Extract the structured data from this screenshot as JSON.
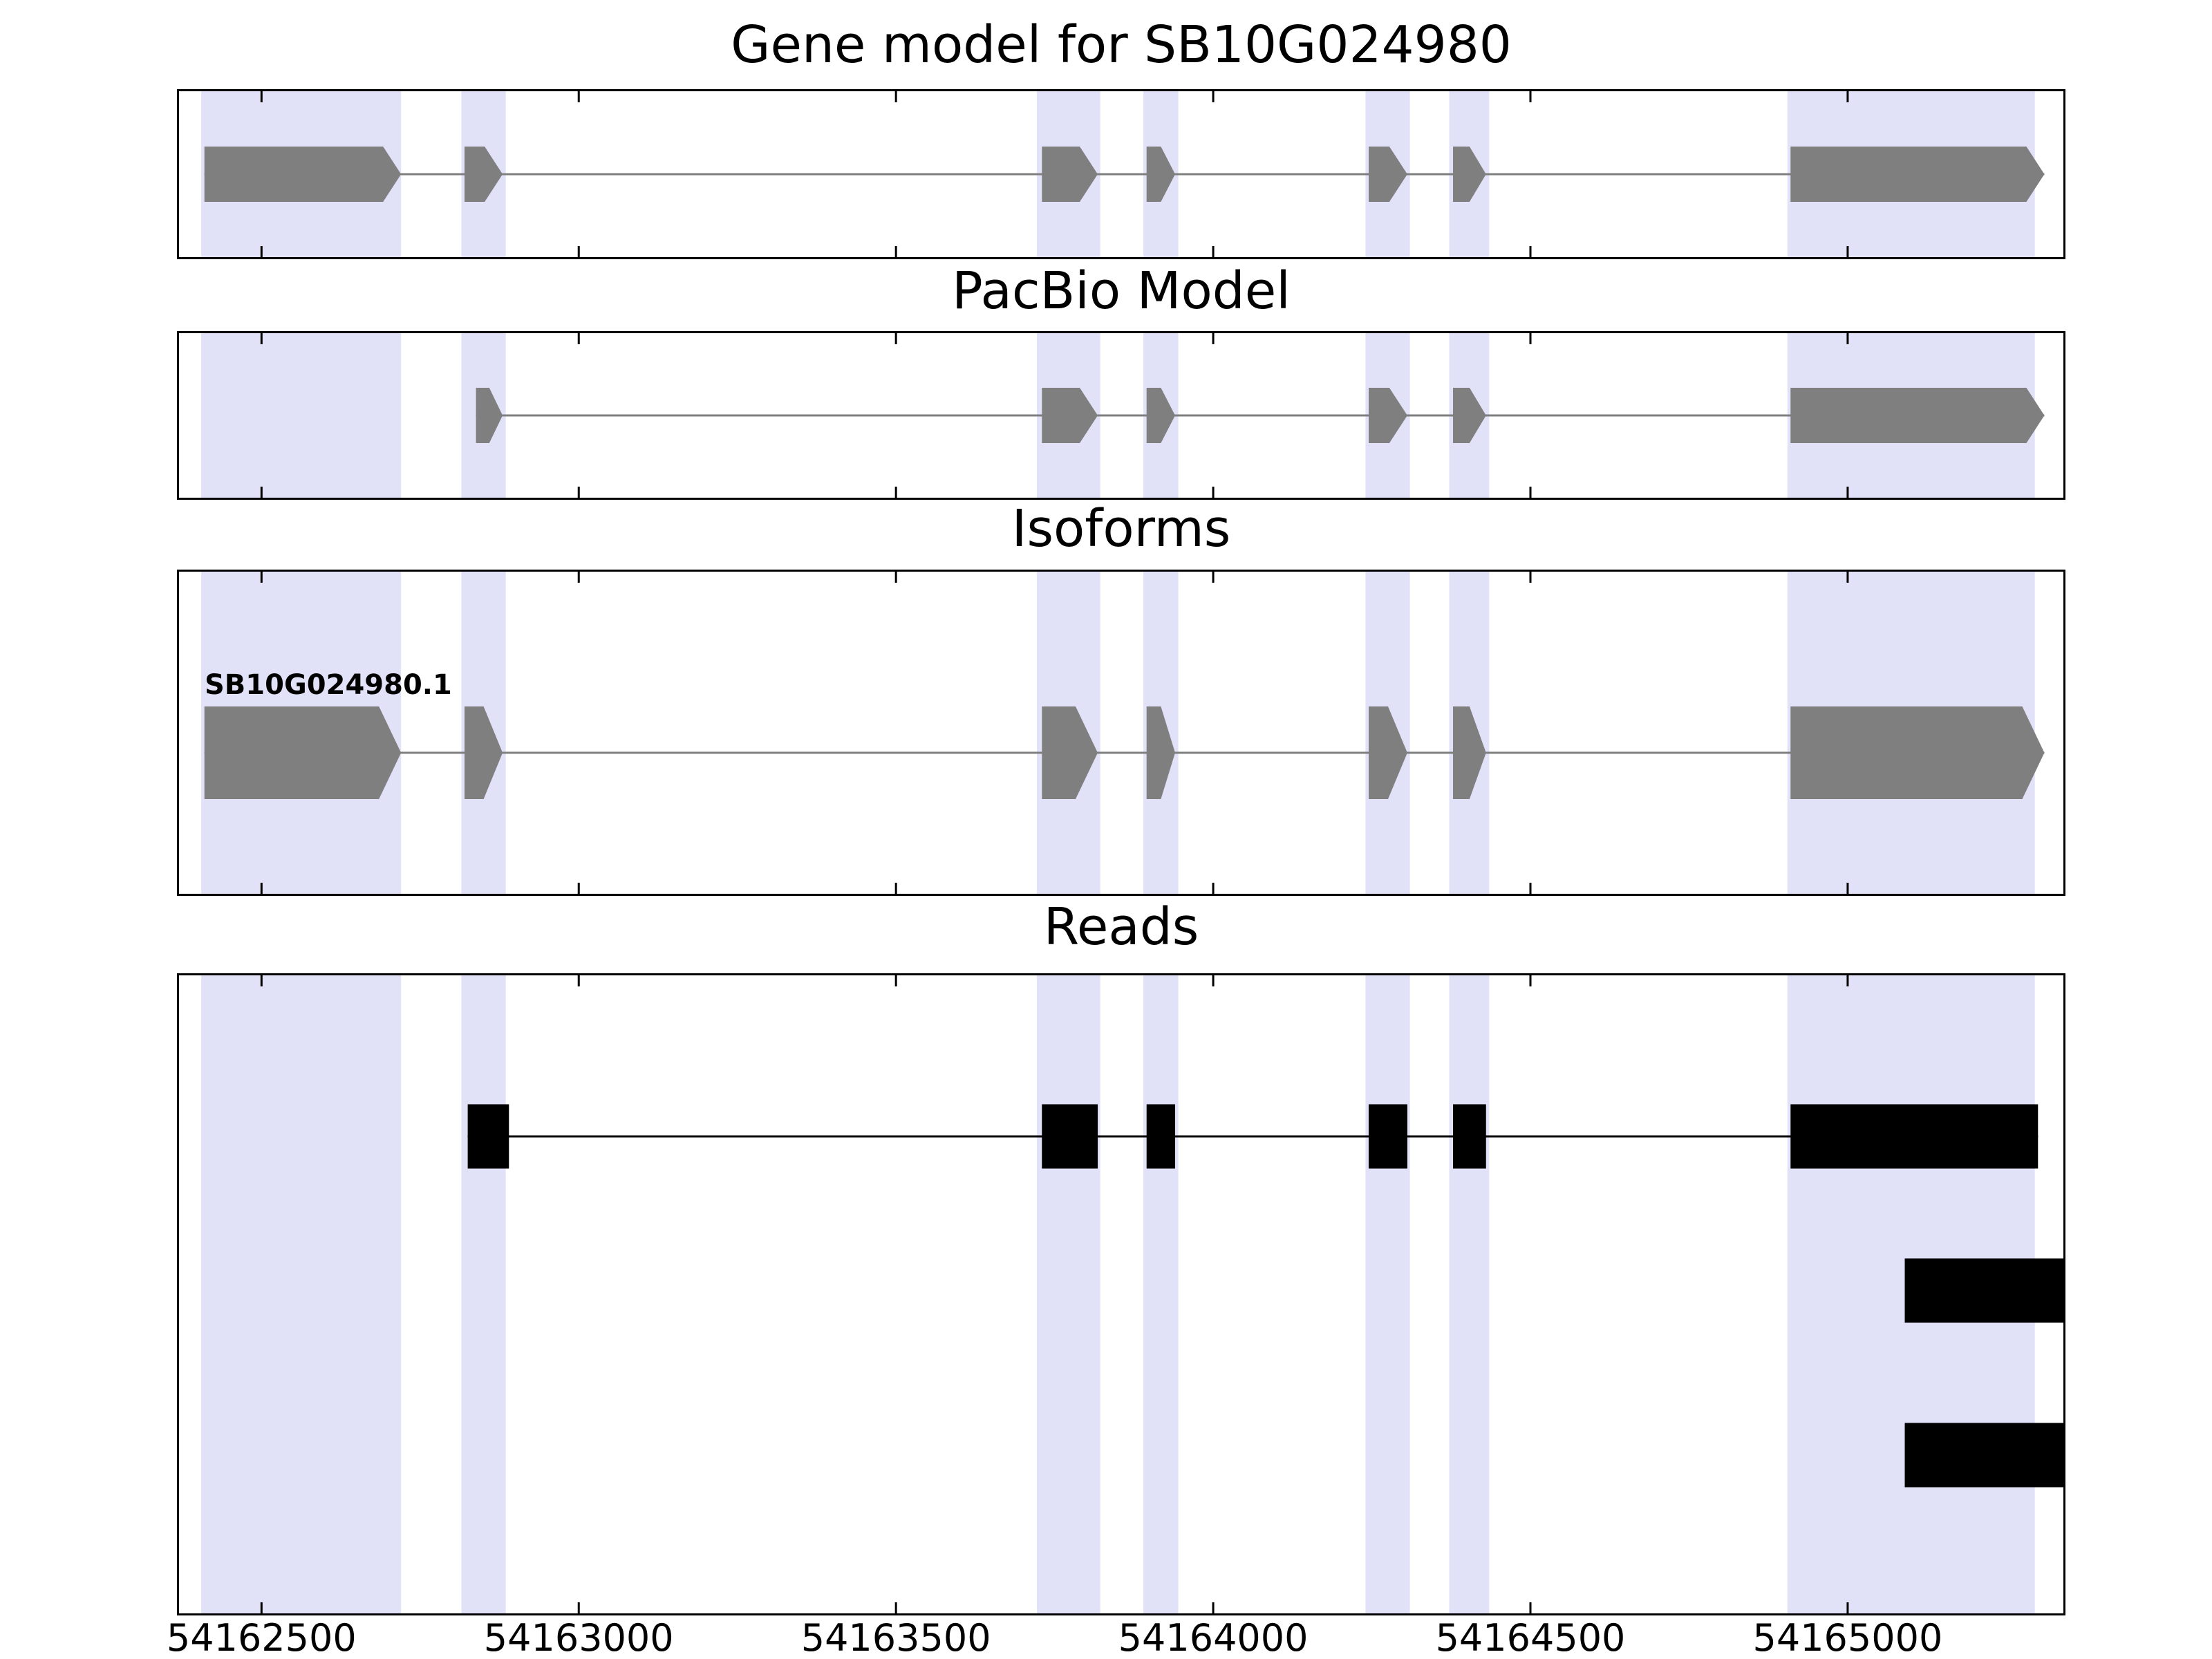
{
  "chart_data": {
    "type": "gene-model-tracks",
    "title": "Gene model for SB10G024980",
    "xlabel": "",
    "ylabel": "",
    "xlim": [
      54162370,
      54165340
    ],
    "x_ticks": [
      54162500,
      54163000,
      54163500,
      54164000,
      54164500,
      54165000
    ],
    "x_tick_labels": [
      "54162500",
      "54163000",
      "54163500",
      "54164000",
      "54164500",
      "54165000"
    ],
    "grid": "off",
    "legend": "none",
    "colors": {
      "exon": "#7f7f7f",
      "read": "#000000",
      "highlight": "#e1e1f8",
      "intron_gene": "#7f7f7f",
      "intron_read": "#000000",
      "border": "#000000",
      "text": "#000000"
    },
    "highlight_regions": [
      [
        54162405,
        54162720
      ],
      [
        54162815,
        54162885
      ],
      [
        54163722,
        54163822
      ],
      [
        54163890,
        54163945
      ],
      [
        54164240,
        54164310
      ],
      [
        54164372,
        54164435
      ],
      [
        54164905,
        54165295
      ]
    ],
    "panels": [
      {
        "title": "Gene model for SB10G024980",
        "type": "gene",
        "strand": "+",
        "features": [
          {
            "label": "",
            "exons": [
              [
                54162410,
                54162720
              ],
              [
                54162820,
                54162880
              ],
              [
                54163730,
                54163818
              ],
              [
                54163895,
                54163940
              ],
              [
                54164245,
                54164306
              ],
              [
                54164378,
                54164430
              ],
              [
                54164910,
                54165310
              ]
            ]
          }
        ]
      },
      {
        "title": "PacBio Model",
        "type": "gene",
        "strand": "+",
        "features": [
          {
            "label": "",
            "exons": [
              [
                54162838,
                54162880
              ],
              [
                54163730,
                54163818
              ],
              [
                54163895,
                54163940
              ],
              [
                54164245,
                54164306
              ],
              [
                54164378,
                54164430
              ],
              [
                54164910,
                54165310
              ]
            ]
          }
        ]
      },
      {
        "title": "Isoforms",
        "type": "gene",
        "strand": "+",
        "features": [
          {
            "label": "SB10G024980.1",
            "exons": [
              [
                54162410,
                54162720
              ],
              [
                54162820,
                54162880
              ],
              [
                54163730,
                54163818
              ],
              [
                54163895,
                54163940
              ],
              [
                54164245,
                54164306
              ],
              [
                54164378,
                54164430
              ],
              [
                54164910,
                54165310
              ]
            ]
          }
        ]
      },
      {
        "title": "Reads",
        "type": "reads",
        "reads": [
          {
            "exons": [
              [
                54162825,
                54162890
              ],
              [
                54163730,
                54163818
              ],
              [
                54163895,
                54163940
              ],
              [
                54164245,
                54164306
              ],
              [
                54164378,
                54164430
              ],
              [
                54164910,
                54165300
              ]
            ]
          },
          {
            "exons": [
              [
                54165090,
                54165340
              ]
            ]
          },
          {
            "exons": [
              [
                54165090,
                54165340
              ]
            ]
          }
        ]
      }
    ]
  }
}
